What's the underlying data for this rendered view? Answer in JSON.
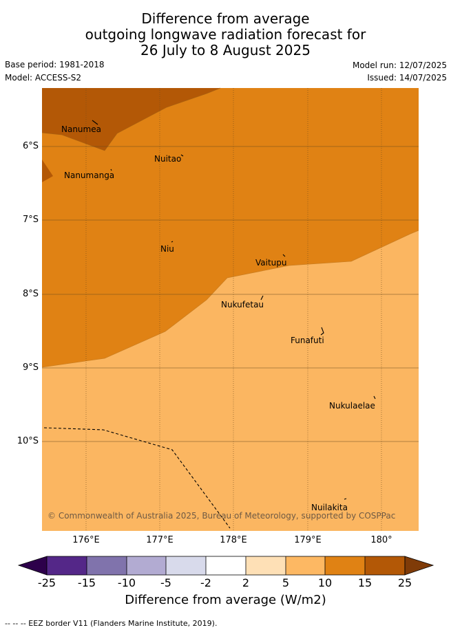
{
  "title": {
    "line1": "Difference from average",
    "line2": "outgoing longwave radiation forecast for",
    "line3": "26 July to 8 August 2025"
  },
  "meta": {
    "base_period": "Base period: 1981-2018",
    "model": "Model: ACCESS-S2",
    "model_run": "Model run: 12/07/2025",
    "issued": "Issued: 14/07/2025"
  },
  "map": {
    "lat_labels": [
      "6°S",
      "7°S",
      "8°S",
      "9°S",
      "10°S"
    ],
    "lon_labels": [
      "176°E",
      "177°E",
      "178°E",
      "179°E",
      "180°"
    ],
    "places": [
      "Nanumea",
      "Nuitao",
      "Nanumanga",
      "Niu",
      "Vaitupu",
      "Nukufetau",
      "Funafuti",
      "Nukulaelae",
      "Nuilakita"
    ],
    "copyright": "© Commonwealth of Australia 2025, Bureau of Meteorology, supported by COSPPac",
    "colors": {
      "band_5_10": "#fbb661",
      "band_10_15": "#e08214",
      "band_15_25": "#b35806"
    }
  },
  "colorbar": {
    "ticks": [
      "-25",
      "-15",
      "-10",
      "-5",
      "-2",
      "2",
      "5",
      "10",
      "15",
      "25"
    ],
    "colors": [
      "#542788",
      "#8073ac",
      "#b2abd2",
      "#d8daeb",
      "#ffffff",
      "#fee0b6",
      "#fdb863",
      "#e08214",
      "#b35806"
    ],
    "under_color": "#2d004b",
    "over_color": "#7f3b08",
    "label": "Difference from average (W/m2)"
  },
  "footer": "-- -- -- EEZ border V11 (Flanders Marine Institute, 2019)."
}
